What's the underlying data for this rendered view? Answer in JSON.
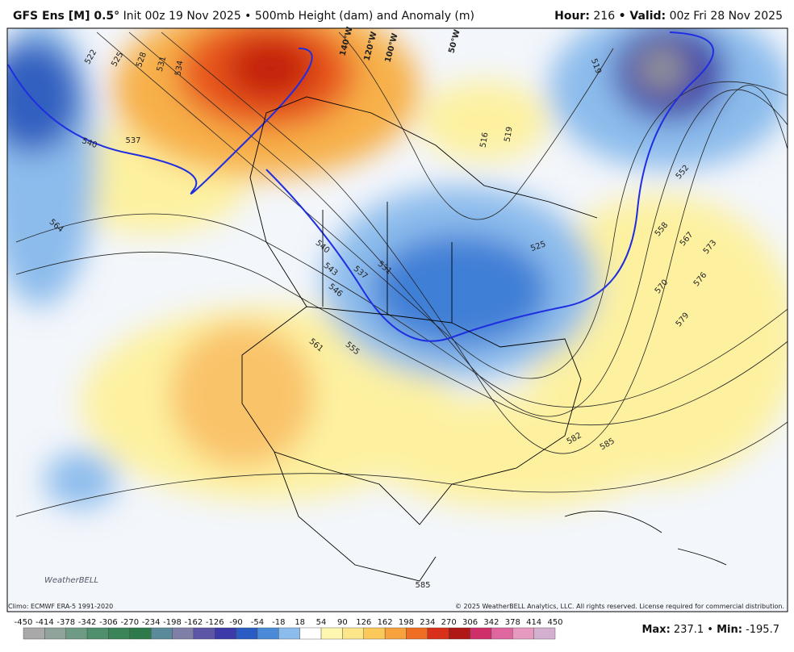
{
  "header": {
    "model": "GFS Ens [M] 0.5°",
    "run": "Init 00z 19 Nov 2025 • 500mb Height (dam) and Anomaly (m)",
    "hour_label": "Hour:",
    "hour": "216",
    "valid_label": "• Valid:",
    "valid": "00z Fri 28 Nov 2025"
  },
  "map": {
    "contour_labels": [
      "522",
      "525",
      "528",
      "531",
      "534",
      "540",
      "537",
      "564",
      "540",
      "543",
      "546",
      "537",
      "531",
      "525",
      "519",
      "519",
      "516",
      "552",
      "558",
      "567",
      "573",
      "576",
      "570",
      "579",
      "561",
      "555",
      "582",
      "585",
      "585"
    ],
    "longitude_labels": [
      "140°W",
      "120°W",
      "100°W",
      "50°W"
    ],
    "logo": "WeatherBELL"
  },
  "footer": {
    "climo": "Climo: ECMWF ERA-5 1991-2020",
    "copyright": "© 2025 WeatherBELL Analytics, LLC. All rights reserved. License required for commercial distribution.",
    "max_label": "Max:",
    "max": "237.1",
    "separator": "•",
    "min_label": "Min:",
    "min": "-195.7"
  },
  "colorbar": {
    "ticks": [
      -450,
      -414,
      -378,
      -342,
      -306,
      -270,
      -234,
      -198,
      -162,
      -126,
      -90,
      -54,
      -18,
      18,
      54,
      90,
      126,
      162,
      198,
      234,
      270,
      306,
      342,
      378,
      414,
      450
    ],
    "colors": [
      "#a9a9a9",
      "#8fa39a",
      "#6f9a84",
      "#4f8f6c",
      "#3a8457",
      "#2f7a4a",
      "#5b8a9a",
      "#7f7fa8",
      "#5d55a6",
      "#3b3aa8",
      "#2a5cc4",
      "#4a8ad8",
      "#8cbcec",
      "#ffffff",
      "#fff7b0",
      "#fde68a",
      "#fbc85a",
      "#f7a23c",
      "#ef6e24",
      "#d8301a",
      "#b01818",
      "#d0306a",
      "#e066a0",
      "#e69ac0",
      "#d4b0d0"
    ]
  }
}
